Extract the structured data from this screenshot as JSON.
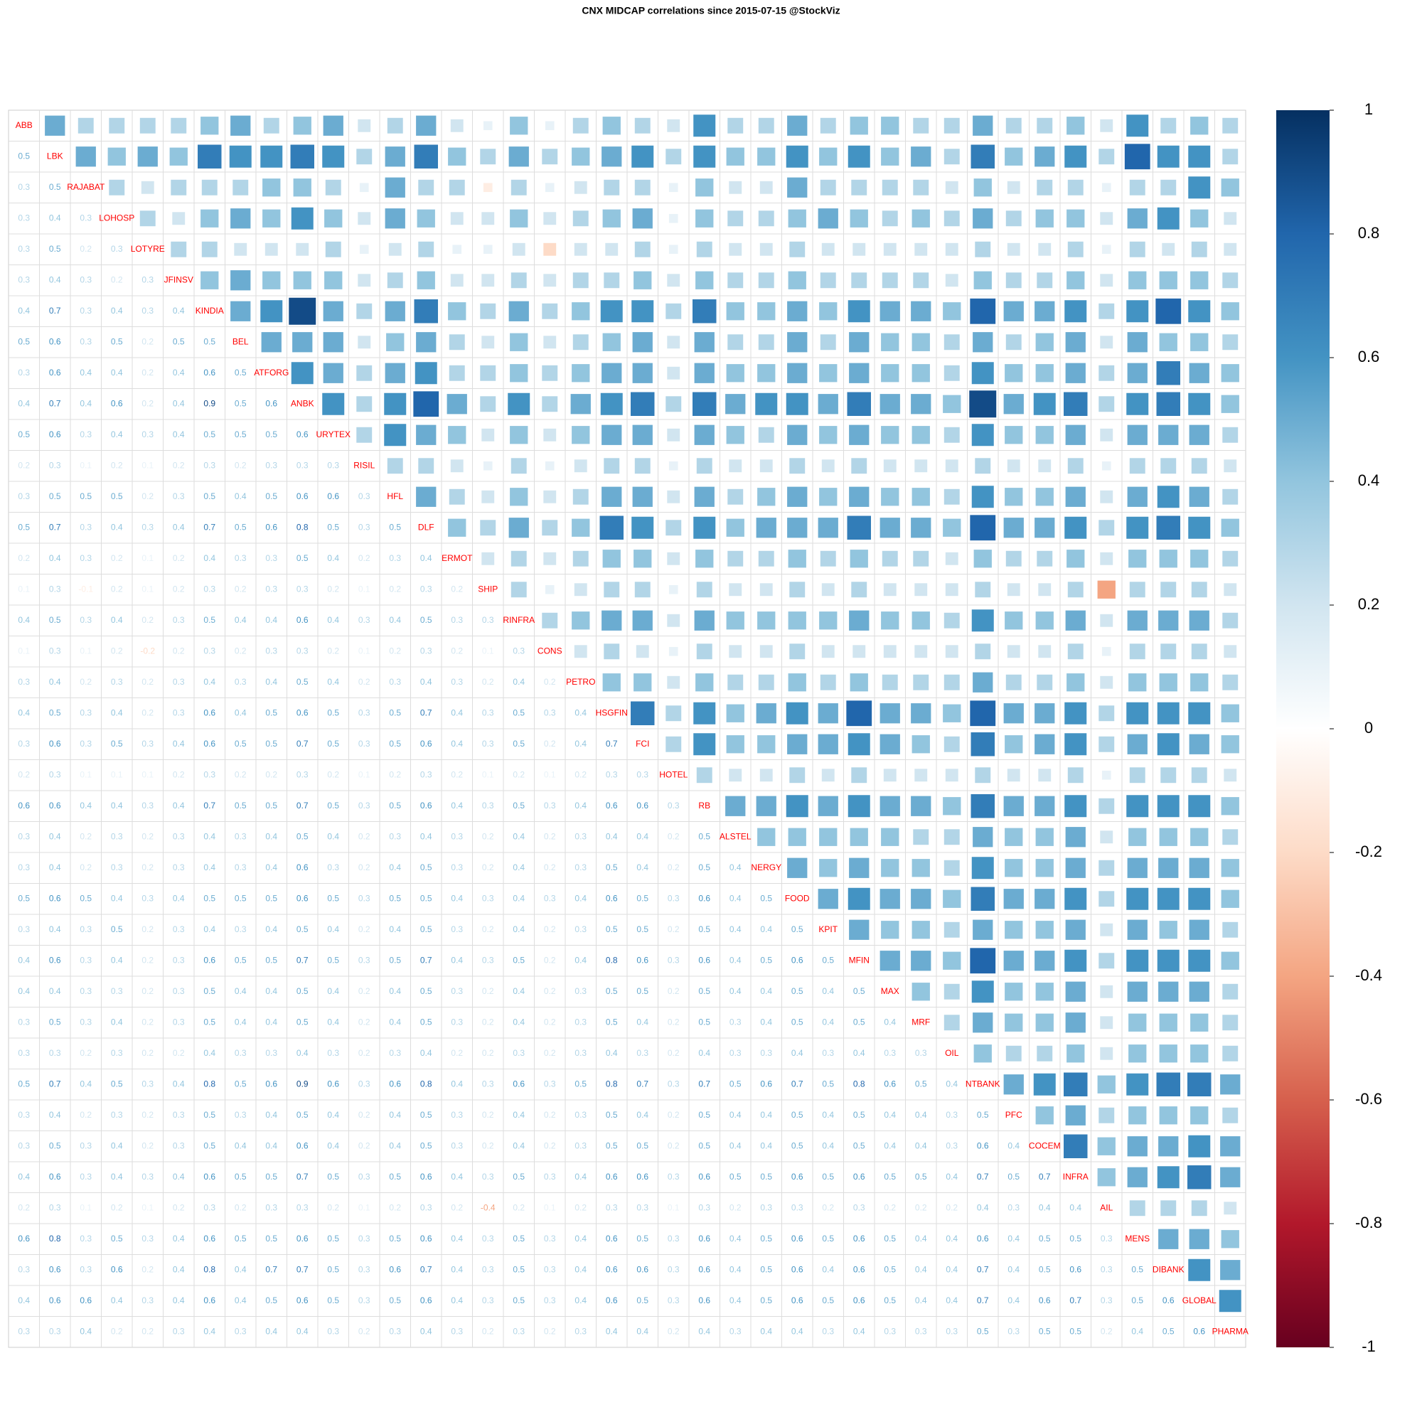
{
  "chart_data": {
    "type": "corrplot",
    "title": "CNX MIDCAP correlations since 2015-07-15 @StockViz",
    "labels": [
      "ABB",
      "LBK",
      "RAJABAT",
      "LOHOSP",
      "LOTYRE",
      "JFINSV",
      "KINDIA",
      "BEL",
      "ATFORG",
      "ANBK",
      "URYTEX",
      "RISIL",
      "HFL",
      "DLF",
      "ERMOT",
      "SHIP",
      "RINFRA",
      "CONS",
      "PETRO",
      "HSGFIN",
      "FCI",
      "HOTEL",
      "RB",
      "ALSTEL",
      "NERGY",
      "FOOD",
      "KPIT",
      "MFIN",
      "MAX",
      "MRF",
      "OIL",
      "NTBANK",
      "PFC",
      "COCEM",
      "INFRA",
      "AIL",
      "MENS",
      "DIBANK",
      "GLOBAL",
      "PHARMA"
    ],
    "lower": [
      [
        0.5
      ],
      [
        0.3,
        0.5
      ],
      [
        0.3,
        0.4,
        0.3
      ],
      [
        0.3,
        0.5,
        0.2,
        0.3
      ],
      [
        0.3,
        0.4,
        0.3,
        0.2,
        0.3
      ],
      [
        0.4,
        0.7,
        0.3,
        0.4,
        0.3,
        0.4
      ],
      [
        0.5,
        0.6,
        0.3,
        0.5,
        0.2,
        0.5,
        0.5
      ],
      [
        0.3,
        0.6,
        0.4,
        0.4,
        0.2,
        0.4,
        0.6,
        0.5
      ],
      [
        0.4,
        0.7,
        0.4,
        0.6,
        0.2,
        0.4,
        0.9,
        0.5,
        0.6
      ],
      [
        0.5,
        0.6,
        0.3,
        0.4,
        0.3,
        0.4,
        0.5,
        0.5,
        0.5,
        0.6
      ],
      [
        0.2,
        0.3,
        0.1,
        0.2,
        0.1,
        0.2,
        0.3,
        0.2,
        0.3,
        0.3,
        0.3
      ],
      [
        0.3,
        0.5,
        0.5,
        0.5,
        0.2,
        0.3,
        0.5,
        0.4,
        0.5,
        0.6,
        0.6,
        0.3
      ],
      [
        0.5,
        0.7,
        0.3,
        0.4,
        0.3,
        0.4,
        0.7,
        0.5,
        0.6,
        0.8,
        0.5,
        0.3,
        0.5
      ],
      [
        0.2,
        0.4,
        0.3,
        0.2,
        0.1,
        0.2,
        0.4,
        0.3,
        0.3,
        0.5,
        0.4,
        0.2,
        0.3,
        0.4
      ],
      [
        0.1,
        0.3,
        -0.1,
        0.2,
        0.1,
        0.2,
        0.3,
        0.2,
        0.3,
        0.3,
        0.2,
        0.1,
        0.2,
        0.3,
        0.2
      ],
      [
        0.4,
        0.5,
        0.3,
        0.4,
        0.2,
        0.3,
        0.5,
        0.4,
        0.4,
        0.6,
        0.4,
        0.3,
        0.4,
        0.5,
        0.3,
        0.3
      ],
      [
        0.1,
        0.3,
        0.1,
        0.2,
        -0.2,
        0.2,
        0.3,
        0.2,
        0.3,
        0.3,
        0.2,
        0.1,
        0.2,
        0.3,
        0.2,
        0.1,
        0.3
      ],
      [
        0.3,
        0.4,
        0.2,
        0.3,
        0.2,
        0.3,
        0.4,
        0.3,
        0.4,
        0.5,
        0.4,
        0.2,
        0.3,
        0.4,
        0.3,
        0.2,
        0.4,
        0.2
      ],
      [
        0.4,
        0.5,
        0.3,
        0.4,
        0.2,
        0.3,
        0.6,
        0.4,
        0.5,
        0.6,
        0.5,
        0.3,
        0.5,
        0.7,
        0.4,
        0.3,
        0.5,
        0.3,
        0.4
      ],
      [
        0.3,
        0.6,
        0.3,
        0.5,
        0.3,
        0.4,
        0.6,
        0.5,
        0.5,
        0.7,
        0.5,
        0.3,
        0.5,
        0.6,
        0.4,
        0.3,
        0.5,
        0.2,
        0.4,
        0.7
      ],
      [
        0.2,
        0.3,
        0.1,
        0.1,
        0.1,
        0.2,
        0.3,
        0.2,
        0.2,
        0.3,
        0.2,
        0.1,
        0.2,
        0.3,
        0.2,
        0.1,
        0.2,
        0.1,
        0.2,
        0.3,
        0.3
      ],
      [
        0.6,
        0.6,
        0.4,
        0.4,
        0.3,
        0.4,
        0.7,
        0.5,
        0.5,
        0.7,
        0.5,
        0.3,
        0.5,
        0.6,
        0.4,
        0.3,
        0.5,
        0.3,
        0.4,
        0.6,
        0.6,
        0.3
      ],
      [
        0.3,
        0.4,
        0.2,
        0.3,
        0.2,
        0.3,
        0.4,
        0.3,
        0.4,
        0.5,
        0.4,
        0.2,
        0.3,
        0.4,
        0.3,
        0.2,
        0.4,
        0.2,
        0.3,
        0.4,
        0.4,
        0.2,
        0.5
      ],
      [
        0.3,
        0.4,
        0.2,
        0.3,
        0.2,
        0.3,
        0.4,
        0.3,
        0.4,
        0.6,
        0.3,
        0.2,
        0.4,
        0.5,
        0.3,
        0.2,
        0.4,
        0.2,
        0.3,
        0.5,
        0.4,
        0.2,
        0.5,
        0.4
      ],
      [
        0.5,
        0.6,
        0.5,
        0.4,
        0.3,
        0.4,
        0.5,
        0.5,
        0.5,
        0.6,
        0.5,
        0.3,
        0.5,
        0.5,
        0.4,
        0.3,
        0.4,
        0.3,
        0.4,
        0.6,
        0.5,
        0.3,
        0.6,
        0.4,
        0.5
      ],
      [
        0.3,
        0.4,
        0.3,
        0.5,
        0.2,
        0.3,
        0.4,
        0.3,
        0.4,
        0.5,
        0.4,
        0.2,
        0.4,
        0.5,
        0.3,
        0.2,
        0.4,
        0.2,
        0.3,
        0.5,
        0.5,
        0.2,
        0.5,
        0.4,
        0.4,
        0.5
      ],
      [
        0.4,
        0.6,
        0.3,
        0.4,
        0.2,
        0.3,
        0.6,
        0.5,
        0.5,
        0.7,
        0.5,
        0.3,
        0.5,
        0.7,
        0.4,
        0.3,
        0.5,
        0.2,
        0.4,
        0.8,
        0.6,
        0.3,
        0.6,
        0.4,
        0.5,
        0.6,
        0.5
      ],
      [
        0.4,
        0.4,
        0.3,
        0.3,
        0.2,
        0.3,
        0.5,
        0.4,
        0.4,
        0.5,
        0.4,
        0.2,
        0.4,
        0.5,
        0.3,
        0.2,
        0.4,
        0.2,
        0.3,
        0.5,
        0.5,
        0.2,
        0.5,
        0.4,
        0.4,
        0.5,
        0.4,
        0.5
      ],
      [
        0.3,
        0.5,
        0.3,
        0.4,
        0.2,
        0.3,
        0.5,
        0.4,
        0.4,
        0.5,
        0.4,
        0.2,
        0.4,
        0.5,
        0.3,
        0.2,
        0.4,
        0.2,
        0.3,
        0.5,
        0.4,
        0.2,
        0.5,
        0.3,
        0.4,
        0.5,
        0.4,
        0.5,
        0.4
      ],
      [
        0.3,
        0.3,
        0.2,
        0.3,
        0.2,
        0.2,
        0.4,
        0.3,
        0.3,
        0.4,
        0.3,
        0.2,
        0.3,
        0.4,
        0.2,
        0.2,
        0.3,
        0.2,
        0.3,
        0.4,
        0.3,
        0.2,
        0.4,
        0.3,
        0.3,
        0.4,
        0.3,
        0.4,
        0.3,
        0.3
      ],
      [
        0.5,
        0.7,
        0.4,
        0.5,
        0.3,
        0.4,
        0.8,
        0.5,
        0.6,
        0.9,
        0.6,
        0.3,
        0.6,
        0.8,
        0.4,
        0.3,
        0.6,
        0.3,
        0.5,
        0.8,
        0.7,
        0.3,
        0.7,
        0.5,
        0.6,
        0.7,
        0.5,
        0.8,
        0.6,
        0.5,
        0.4
      ],
      [
        0.3,
        0.4,
        0.2,
        0.3,
        0.2,
        0.3,
        0.5,
        0.3,
        0.4,
        0.5,
        0.4,
        0.2,
        0.4,
        0.5,
        0.3,
        0.2,
        0.4,
        0.2,
        0.3,
        0.5,
        0.4,
        0.2,
        0.5,
        0.4,
        0.4,
        0.5,
        0.4,
        0.5,
        0.4,
        0.4,
        0.3,
        0.5
      ],
      [
        0.3,
        0.5,
        0.3,
        0.4,
        0.2,
        0.3,
        0.5,
        0.4,
        0.4,
        0.6,
        0.4,
        0.2,
        0.4,
        0.5,
        0.3,
        0.2,
        0.4,
        0.2,
        0.3,
        0.5,
        0.5,
        0.2,
        0.5,
        0.4,
        0.4,
        0.5,
        0.4,
        0.5,
        0.4,
        0.4,
        0.3,
        0.6,
        0.4
      ],
      [
        0.4,
        0.6,
        0.3,
        0.4,
        0.3,
        0.4,
        0.6,
        0.5,
        0.5,
        0.7,
        0.5,
        0.3,
        0.5,
        0.6,
        0.4,
        0.3,
        0.5,
        0.3,
        0.4,
        0.6,
        0.6,
        0.3,
        0.6,
        0.5,
        0.5,
        0.6,
        0.5,
        0.6,
        0.5,
        0.5,
        0.4,
        0.7,
        0.5,
        0.7
      ],
      [
        0.2,
        0.3,
        0.1,
        0.2,
        0.1,
        0.2,
        0.3,
        0.2,
        0.3,
        0.3,
        0.2,
        0.1,
        0.2,
        0.3,
        0.2,
        -0.4,
        0.2,
        0.1,
        0.2,
        0.3,
        0.3,
        0.1,
        0.3,
        0.2,
        0.3,
        0.3,
        0.2,
        0.3,
        0.2,
        0.2,
        0.2,
        0.4,
        0.3,
        0.4,
        0.4
      ],
      [
        0.6,
        0.8,
        0.3,
        0.5,
        0.3,
        0.4,
        0.6,
        0.5,
        0.5,
        0.6,
        0.5,
        0.3,
        0.5,
        0.6,
        0.4,
        0.3,
        0.5,
        0.3,
        0.4,
        0.6,
        0.5,
        0.3,
        0.6,
        0.4,
        0.5,
        0.6,
        0.5,
        0.6,
        0.5,
        0.4,
        0.4,
        0.6,
        0.4,
        0.5,
        0.5,
        0.3
      ],
      [
        0.3,
        0.6,
        0.3,
        0.6,
        0.2,
        0.4,
        0.8,
        0.4,
        0.7,
        0.7,
        0.5,
        0.3,
        0.6,
        0.7,
        0.4,
        0.3,
        0.5,
        0.3,
        0.4,
        0.6,
        0.6,
        0.3,
        0.6,
        0.4,
        0.5,
        0.6,
        0.4,
        0.6,
        0.5,
        0.4,
        0.4,
        0.7,
        0.4,
        0.5,
        0.6,
        0.3,
        0.5
      ],
      [
        0.4,
        0.6,
        0.6,
        0.4,
        0.3,
        0.4,
        0.6,
        0.4,
        0.5,
        0.6,
        0.5,
        0.3,
        0.5,
        0.6,
        0.4,
        0.3,
        0.5,
        0.3,
        0.4,
        0.6,
        0.5,
        0.3,
        0.6,
        0.4,
        0.5,
        0.6,
        0.5,
        0.6,
        0.5,
        0.4,
        0.4,
        0.7,
        0.4,
        0.6,
        0.7,
        0.3,
        0.5,
        0.6
      ],
      [
        0.3,
        0.3,
        0.4,
        0.2,
        0.2,
        0.3,
        0.4,
        0.3,
        0.4,
        0.4,
        0.3,
        0.2,
        0.3,
        0.4,
        0.3,
        0.2,
        0.3,
        0.2,
        0.3,
        0.4,
        0.4,
        0.2,
        0.4,
        0.3,
        0.4,
        0.4,
        0.3,
        0.4,
        0.3,
        0.3,
        0.3,
        0.5,
        0.3,
        0.5,
        0.5,
        0.2,
        0.4,
        0.5,
        0.6
      ]
    ],
    "colors": [
      "#67001f",
      "#b2182b",
      "#d6604d",
      "#f4a582",
      "#fddbc7",
      "#ffffff",
      "#d1e5f0",
      "#92c5de",
      "#4393c3",
      "#2166ac",
      "#053061"
    ],
    "label_color": "#ff0000",
    "clim": [
      -1,
      1
    ],
    "cticks": [
      1,
      0.8,
      0.6,
      0.4,
      0.2,
      0,
      -0.2,
      -0.4,
      -0.6,
      -0.8,
      -1
    ]
  }
}
